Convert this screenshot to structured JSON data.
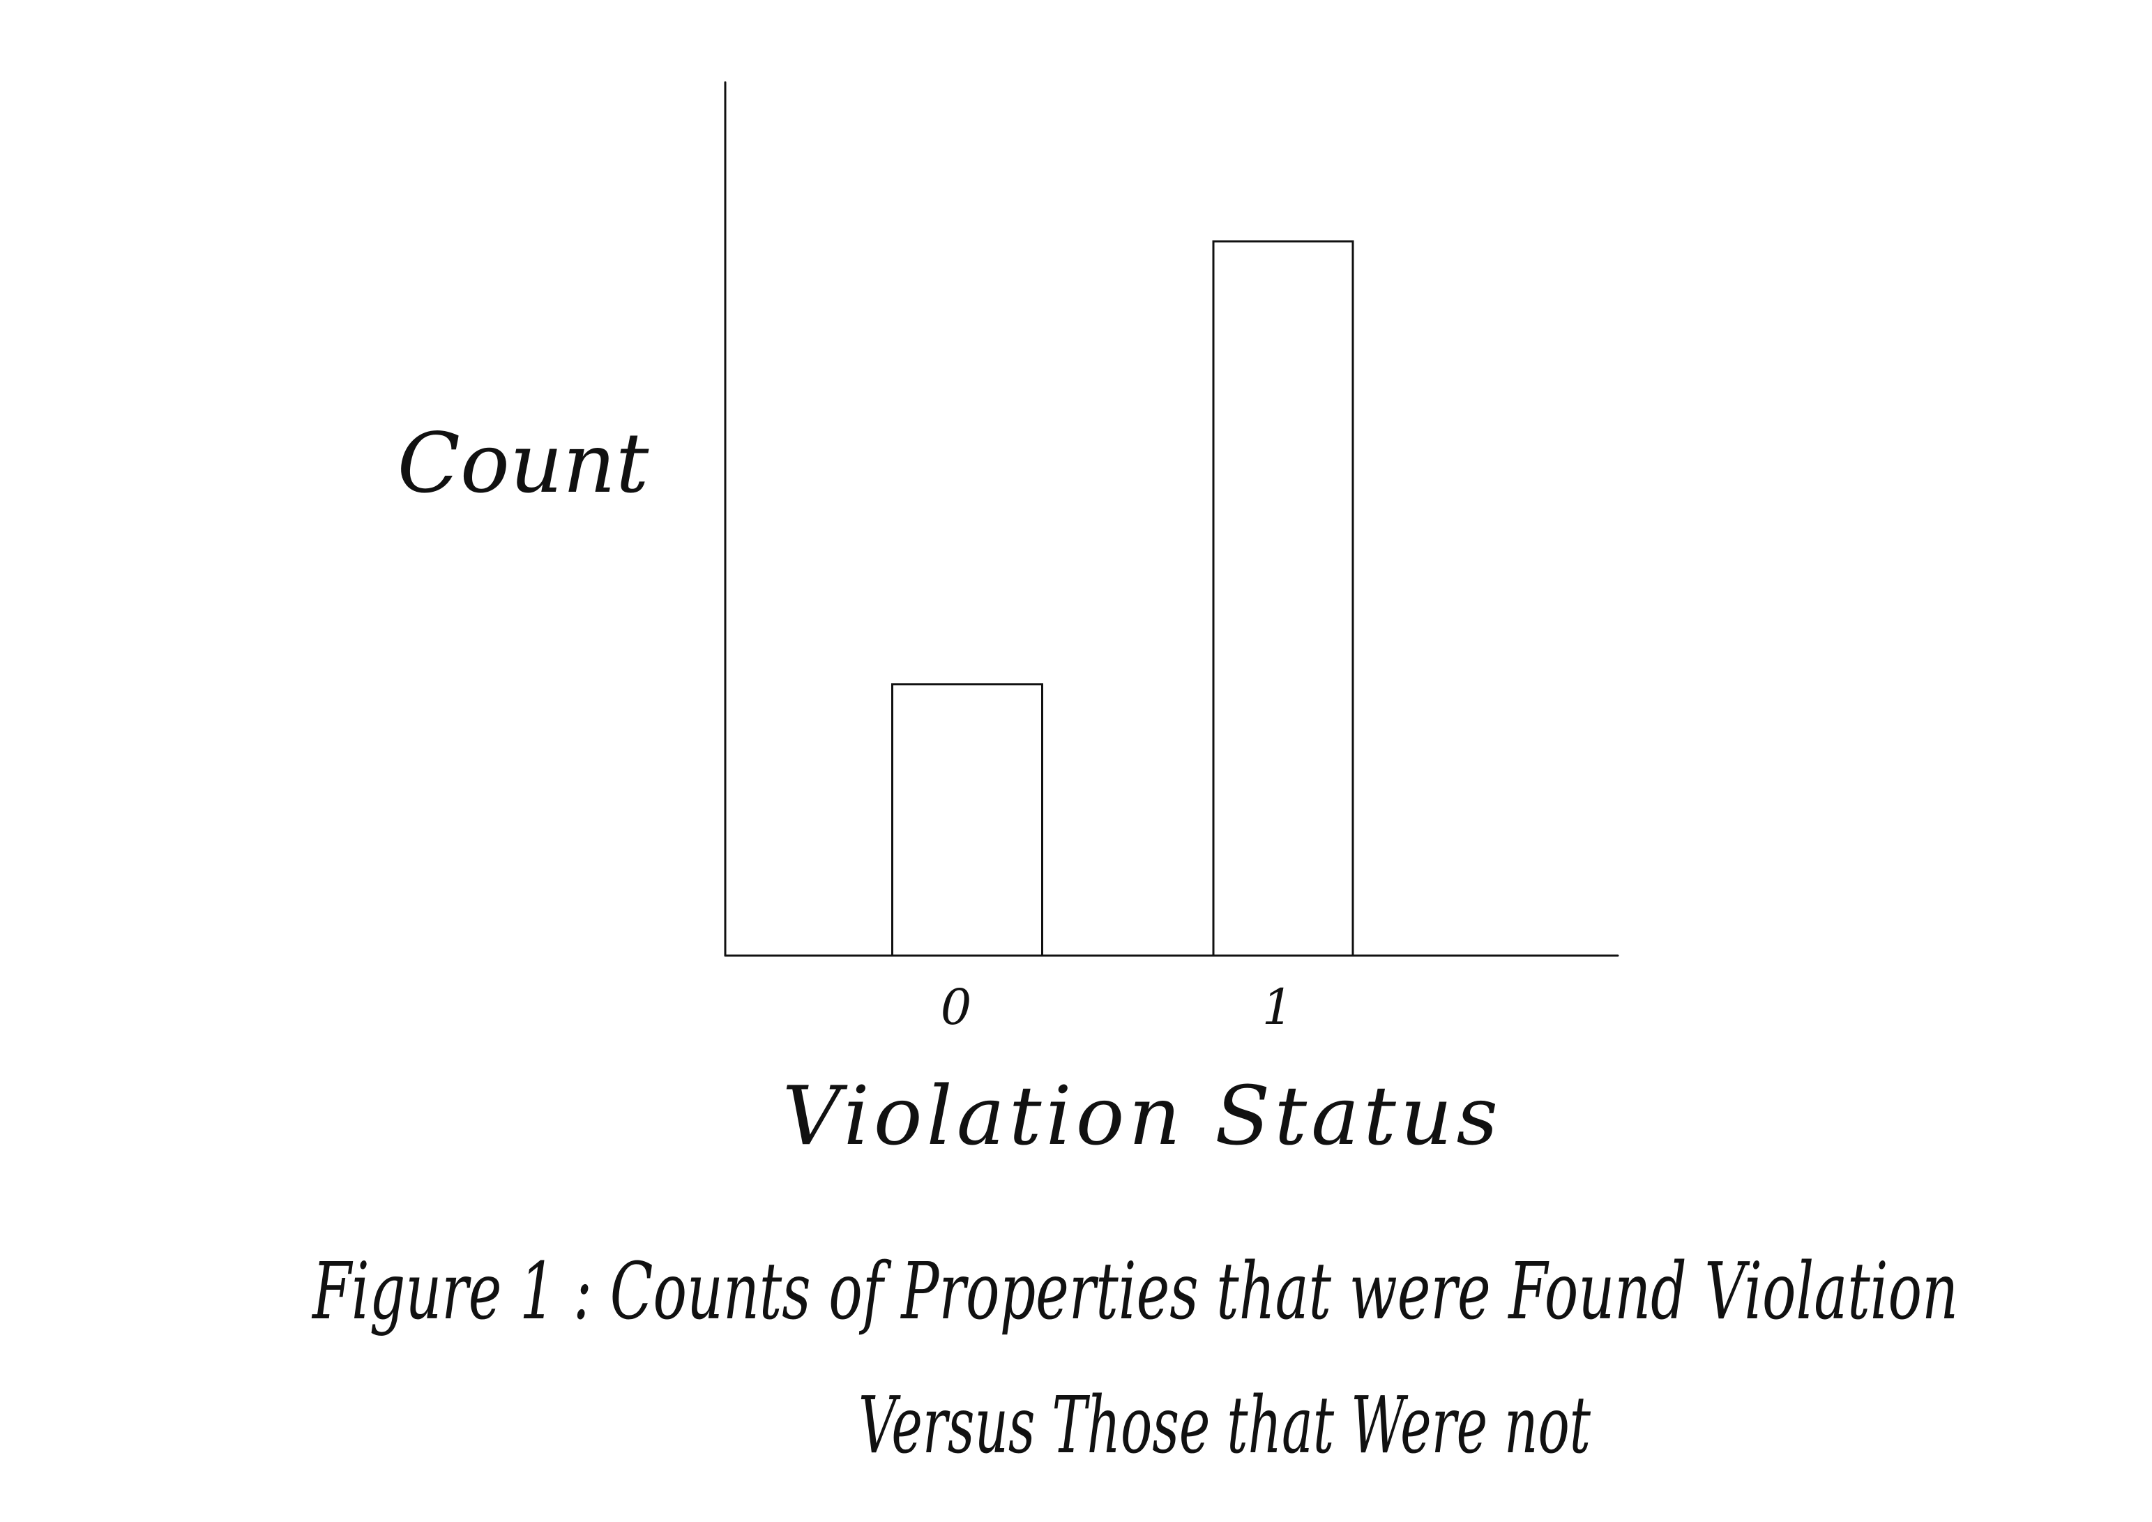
{
  "chart_data": {
    "type": "bar",
    "categories": [
      "0",
      "1"
    ],
    "values": [
      38,
      100
    ],
    "xlabel": "Violation Status",
    "ylabel": "Count",
    "ylim": [
      0,
      122
    ],
    "grid": false,
    "legend": "none",
    "caption_line1": "Figure 1 : Counts of Properties that were Found Violation",
    "caption_line2": "Versus Those that Were not",
    "colors": {
      "ink": "#111111",
      "bar_fill": "#ffffff",
      "background": "#ffffff"
    }
  }
}
